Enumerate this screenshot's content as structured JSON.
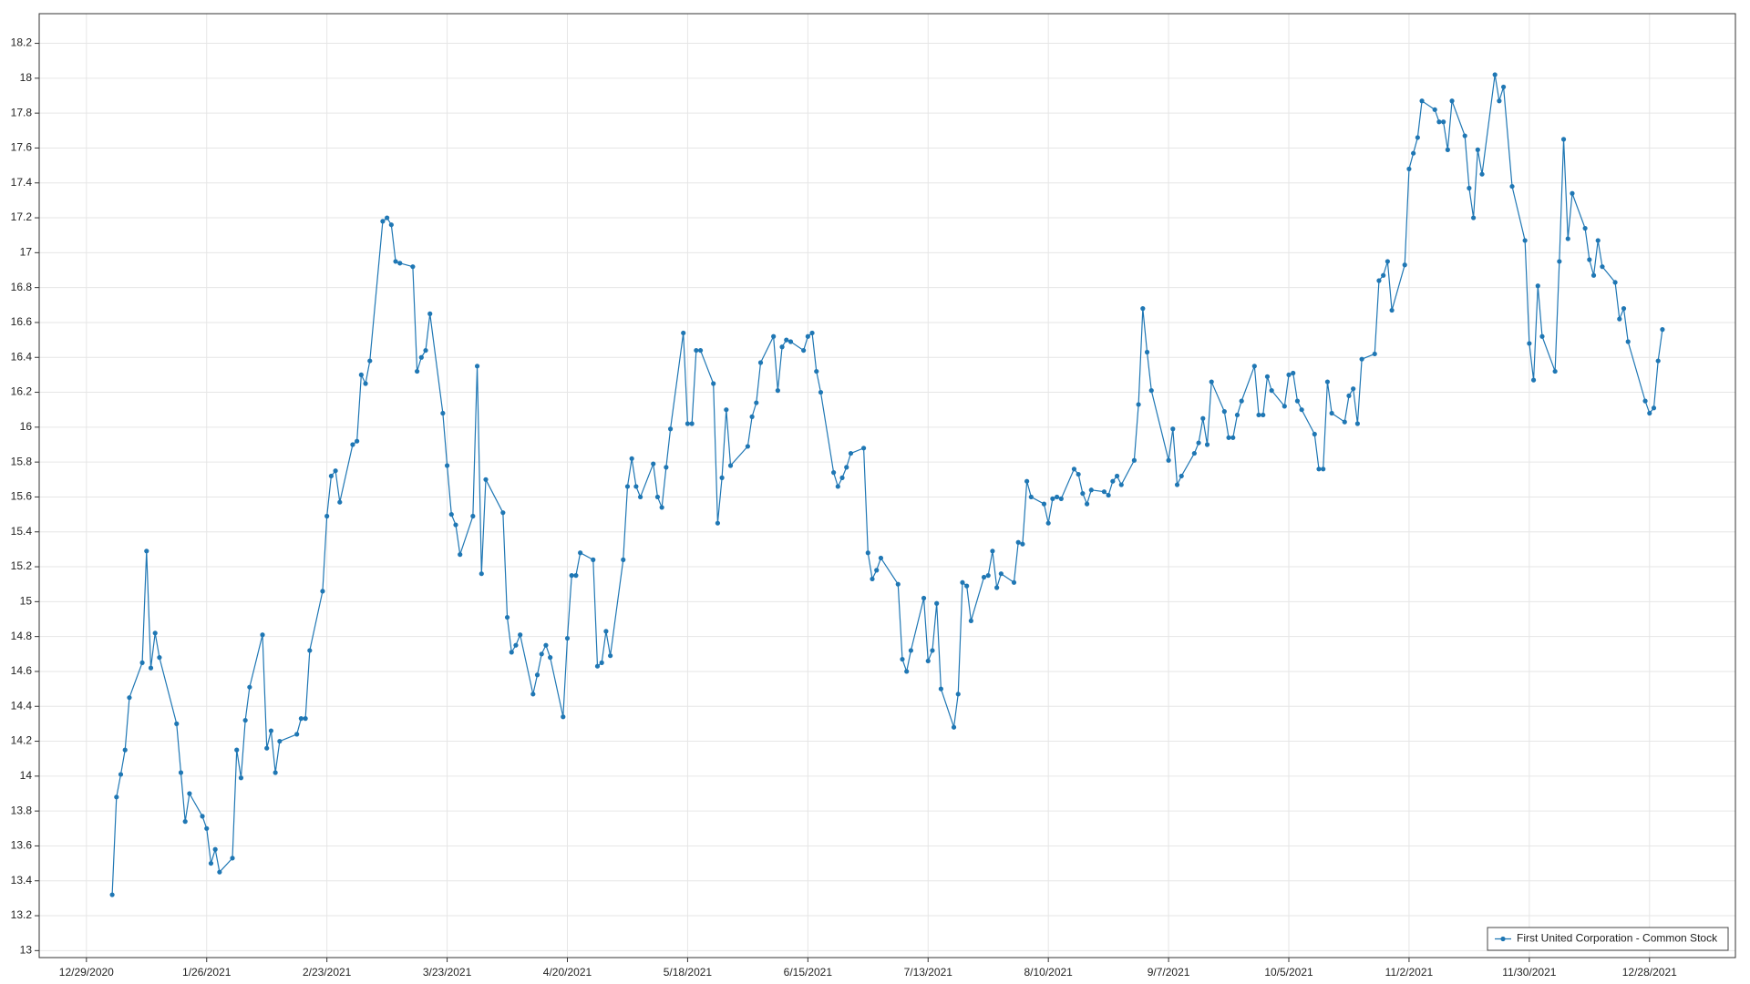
{
  "chart_data": {
    "type": "line",
    "x": [
      "1/4/2021",
      "1/5/2021",
      "1/6/2021",
      "1/7/2021",
      "1/8/2021",
      "1/11/2021",
      "1/12/2021",
      "1/13/2021",
      "1/14/2021",
      "1/15/2021",
      "1/19/2021",
      "1/20/2021",
      "1/21/2021",
      "1/22/2021",
      "1/25/2021",
      "1/26/2021",
      "1/27/2021",
      "1/28/2021",
      "1/29/2021",
      "2/1/2021",
      "2/2/2021",
      "2/3/2021",
      "2/4/2021",
      "2/5/2021",
      "2/8/2021",
      "2/9/2021",
      "2/10/2021",
      "2/11/2021",
      "2/12/2021",
      "2/16/2021",
      "2/17/2021",
      "2/18/2021",
      "2/19/2021",
      "2/22/2021",
      "2/23/2021",
      "2/24/2021",
      "2/25/2021",
      "2/26/2021",
      "3/1/2021",
      "3/2/2021",
      "3/3/2021",
      "3/4/2021",
      "3/5/2021",
      "3/8/2021",
      "3/9/2021",
      "3/10/2021",
      "3/11/2021",
      "3/12/2021",
      "3/15/2021",
      "3/16/2021",
      "3/17/2021",
      "3/18/2021",
      "3/19/2021",
      "3/22/2021",
      "3/23/2021",
      "3/24/2021",
      "3/25/2021",
      "3/26/2021",
      "3/29/2021",
      "3/30/2021",
      "3/31/2021",
      "4/1/2021",
      "4/5/2021",
      "4/6/2021",
      "4/7/2021",
      "4/8/2021",
      "4/9/2021",
      "4/12/2021",
      "4/13/2021",
      "4/14/2021",
      "4/15/2021",
      "4/16/2021",
      "4/19/2021",
      "4/20/2021",
      "4/21/2021",
      "4/22/2021",
      "4/23/2021",
      "4/26/2021",
      "4/27/2021",
      "4/28/2021",
      "4/29/2021",
      "4/30/2021",
      "5/3/2021",
      "5/4/2021",
      "5/5/2021",
      "5/6/2021",
      "5/7/2021",
      "5/10/2021",
      "5/11/2021",
      "5/12/2021",
      "5/13/2021",
      "5/14/2021",
      "5/17/2021",
      "5/18/2021",
      "5/19/2021",
      "5/20/2021",
      "5/21/2021",
      "5/24/2021",
      "5/25/2021",
      "5/26/2021",
      "5/27/2021",
      "5/28/2021",
      "6/1/2021",
      "6/2/2021",
      "6/3/2021",
      "6/4/2021",
      "6/7/2021",
      "6/8/2021",
      "6/9/2021",
      "6/10/2021",
      "6/11/2021",
      "6/14/2021",
      "6/15/2021",
      "6/16/2021",
      "6/17/2021",
      "6/18/2021",
      "6/21/2021",
      "6/22/2021",
      "6/23/2021",
      "6/24/2021",
      "6/25/2021",
      "6/28/2021",
      "6/29/2021",
      "6/30/2021",
      "7/1/2021",
      "7/2/2021",
      "7/6/2021",
      "7/7/2021",
      "7/8/2021",
      "7/9/2021",
      "7/12/2021",
      "7/13/2021",
      "7/14/2021",
      "7/15/2021",
      "7/16/2021",
      "7/19/2021",
      "7/20/2021",
      "7/21/2021",
      "7/22/2021",
      "7/23/2021",
      "7/26/2021",
      "7/27/2021",
      "7/28/2021",
      "7/29/2021",
      "7/30/2021",
      "8/2/2021",
      "8/3/2021",
      "8/4/2021",
      "8/5/2021",
      "8/6/2021",
      "8/9/2021",
      "8/10/2021",
      "8/11/2021",
      "8/12/2021",
      "8/13/2021",
      "8/16/2021",
      "8/17/2021",
      "8/18/2021",
      "8/19/2021",
      "8/20/2021",
      "8/23/2021",
      "8/24/2021",
      "8/25/2021",
      "8/26/2021",
      "8/27/2021",
      "8/30/2021",
      "8/31/2021",
      "9/1/2021",
      "9/2/2021",
      "9/3/2021",
      "9/7/2021",
      "9/8/2021",
      "9/9/2021",
      "9/10/2021",
      "9/13/2021",
      "9/14/2021",
      "9/15/2021",
      "9/16/2021",
      "9/17/2021",
      "9/20/2021",
      "9/21/2021",
      "9/22/2021",
      "9/23/2021",
      "9/24/2021",
      "9/27/2021",
      "9/28/2021",
      "9/29/2021",
      "9/30/2021",
      "10/1/2021",
      "10/4/2021",
      "10/5/2021",
      "10/6/2021",
      "10/7/2021",
      "10/8/2021",
      "10/11/2021",
      "10/12/2021",
      "10/13/2021",
      "10/14/2021",
      "10/15/2021",
      "10/18/2021",
      "10/19/2021",
      "10/20/2021",
      "10/21/2021",
      "10/22/2021",
      "10/25/2021",
      "10/26/2021",
      "10/27/2021",
      "10/28/2021",
      "10/29/2021",
      "11/1/2021",
      "11/2/2021",
      "11/3/2021",
      "11/4/2021",
      "11/5/2021",
      "11/8/2021",
      "11/9/2021",
      "11/10/2021",
      "11/11/2021",
      "11/12/2021",
      "11/15/2021",
      "11/16/2021",
      "11/17/2021",
      "11/18/2021",
      "11/19/2021",
      "11/22/2021",
      "11/23/2021",
      "11/24/2021",
      "11/26/2021",
      "11/29/2021",
      "11/30/2021",
      "12/1/2021",
      "12/2/2021",
      "12/3/2021",
      "12/6/2021",
      "12/7/2021",
      "12/8/2021",
      "12/9/2021",
      "12/10/2021",
      "12/13/2021",
      "12/14/2021",
      "12/15/2021",
      "12/16/2021",
      "12/17/2021",
      "12/20/2021",
      "12/21/2021",
      "12/22/2021",
      "12/23/2021",
      "12/27/2021",
      "12/28/2021",
      "12/29/2021",
      "12/30/2021",
      "12/31/2021"
    ],
    "series": [
      {
        "name": "First United Corporation - Common Stock",
        "color": "#1f77b4",
        "values": [
          13.32,
          13.88,
          14.01,
          14.15,
          14.45,
          14.65,
          15.29,
          14.62,
          14.82,
          14.68,
          14.3,
          14.02,
          13.74,
          13.9,
          13.77,
          13.7,
          13.5,
          13.58,
          13.45,
          13.53,
          14.15,
          13.99,
          14.32,
          14.51,
          14.81,
          14.16,
          14.26,
          14.02,
          14.2,
          14.24,
          14.33,
          14.33,
          14.72,
          15.06,
          15.49,
          15.72,
          15.75,
          15.57,
          15.9,
          15.92,
          16.3,
          16.25,
          16.38,
          17.18,
          17.2,
          17.16,
          16.95,
          16.94,
          16.92,
          16.32,
          16.4,
          16.44,
          16.65,
          16.08,
          15.78,
          15.5,
          15.44,
          15.27,
          15.49,
          16.35,
          15.16,
          15.7,
          15.51,
          14.91,
          14.71,
          14.75,
          14.81,
          14.47,
          14.58,
          14.7,
          14.75,
          14.68,
          14.34,
          14.79,
          15.15,
          15.15,
          15.28,
          15.24,
          14.63,
          14.65,
          14.83,
          14.69,
          15.24,
          15.66,
          15.82,
          15.66,
          15.6,
          15.79,
          15.6,
          15.54,
          15.77,
          15.99,
          16.54,
          16.02,
          16.02,
          16.44,
          16.44,
          16.25,
          15.45,
          15.71,
          16.1,
          15.78,
          15.89,
          16.06,
          16.14,
          16.37,
          16.52,
          16.21,
          16.46,
          16.5,
          16.49,
          16.44,
          16.52,
          16.54,
          16.32,
          16.2,
          15.74,
          15.66,
          15.71,
          15.77,
          15.85,
          15.88,
          15.28,
          15.13,
          15.18,
          15.25,
          15.1,
          14.67,
          14.6,
          14.72,
          15.02,
          14.66,
          14.72,
          14.99,
          14.5,
          14.28,
          14.47,
          15.11,
          15.09,
          14.89,
          15.14,
          15.15,
          15.29,
          15.08,
          15.16,
          15.11,
          15.34,
          15.33,
          15.69,
          15.6,
          15.56,
          15.45,
          15.59,
          15.6,
          15.59,
          15.76,
          15.73,
          15.62,
          15.56,
          15.64,
          15.63,
          15.61,
          15.69,
          15.72,
          15.67,
          15.81,
          16.13,
          16.68,
          16.43,
          16.21,
          15.81,
          15.99,
          15.67,
          15.72,
          15.85,
          15.91,
          16.05,
          15.9,
          16.26,
          16.09,
          15.94,
          15.94,
          16.07,
          16.15,
          16.35,
          16.07,
          16.07,
          16.29,
          16.21,
          16.12,
          16.3,
          16.31,
          16.15,
          16.1,
          15.96,
          15.76,
          15.76,
          16.26,
          16.08,
          16.03,
          16.18,
          16.22,
          16.02,
          16.39,
          16.42,
          16.84,
          16.87,
          16.95,
          16.67,
          16.93,
          17.48,
          17.57,
          17.66,
          17.87,
          17.82,
          17.75,
          17.75,
          17.59,
          17.87,
          17.67,
          17.37,
          17.2,
          17.59,
          17.45,
          18.02,
          17.87,
          17.95,
          17.38,
          17.07,
          16.48,
          16.27,
          16.81,
          16.52,
          16.32,
          16.95,
          17.65,
          17.08,
          17.34,
          17.14,
          16.96,
          16.87,
          17.07,
          16.92,
          16.83,
          16.62,
          16.68,
          16.49,
          16.15,
          16.08,
          16.11,
          16.38,
          16.56
        ]
      }
    ],
    "xlim": [
      "12/18/2020",
      "1/17/2022"
    ],
    "xticks": [
      "12/29/2020",
      "1/26/2021",
      "2/23/2021",
      "3/23/2021",
      "4/20/2021",
      "5/18/2021",
      "6/15/2021",
      "7/13/2021",
      "8/10/2021",
      "9/7/2021",
      "10/5/2021",
      "11/2/2021",
      "11/30/2021",
      "12/28/2021"
    ],
    "ylim": [
      12.96,
      18.37
    ],
    "yticks": [
      13,
      13.2,
      13.4,
      13.6,
      13.8,
      14,
      14.2,
      14.4,
      14.6,
      14.8,
      15,
      15.2,
      15.4,
      15.6,
      15.8,
      16,
      16.2,
      16.4,
      16.6,
      16.8,
      17,
      17.2,
      17.4,
      17.6,
      17.8,
      18,
      18.2
    ],
    "grid": true,
    "legend": "lower right"
  }
}
